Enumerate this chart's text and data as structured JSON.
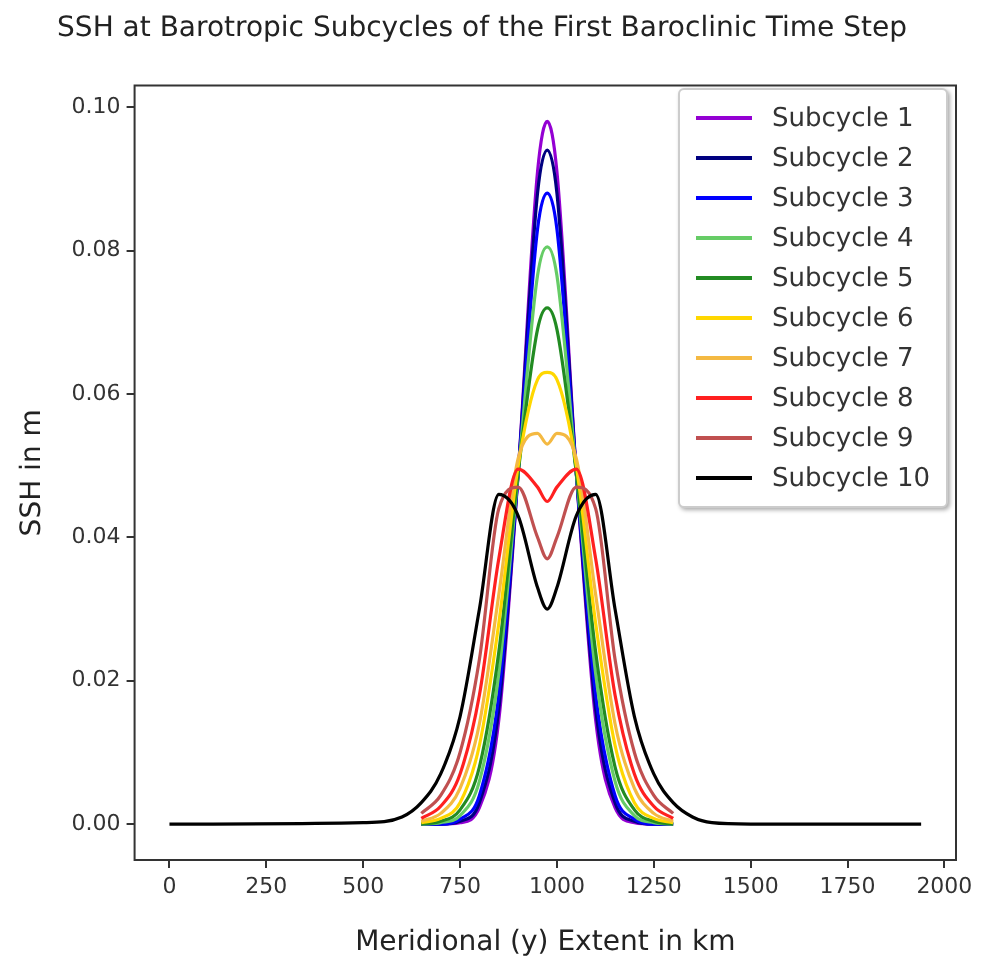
{
  "chart_data": {
    "type": "line",
    "title": "SSH at Barotropic Subcycles of the First Baroclinic Time Step",
    "xlabel": "Meridional (y) Extent in km",
    "ylabel": "SSH in m",
    "x": [
      0,
      500,
      600,
      650,
      700,
      750,
      800,
      850,
      900,
      950,
      975,
      1000,
      1050,
      1100,
      1150,
      1200,
      1250,
      1300,
      1350,
      1400,
      1500,
      1940
    ],
    "series": [
      {
        "name": "Subcycle 1",
        "color": "#9400d3",
        "values": [
          null,
          null,
          null,
          0,
          0,
          0.0002,
          0.0023,
          0.0145,
          0.049,
          0.091,
          0.098,
          0.091,
          0.049,
          0.0145,
          0.0023,
          0.0002,
          0,
          0,
          null,
          null,
          null,
          null
        ]
      },
      {
        "name": "Subcycle 2",
        "color": "#000080",
        "values": [
          null,
          null,
          null,
          0,
          0,
          0.0004,
          0.003,
          0.016,
          0.049,
          0.088,
          0.094,
          0.088,
          0.049,
          0.016,
          0.003,
          0.0004,
          0,
          0,
          null,
          null,
          null,
          null
        ]
      },
      {
        "name": "Subcycle 3",
        "color": "#0000ff",
        "values": [
          null,
          null,
          null,
          0,
          0,
          0.0007,
          0.004,
          0.018,
          0.049,
          0.083,
          0.088,
          0.083,
          0.049,
          0.018,
          0.004,
          0.0007,
          0,
          0,
          null,
          null,
          null,
          null
        ]
      },
      {
        "name": "Subcycle 4",
        "color": "#66cc66",
        "values": [
          null,
          null,
          null,
          0,
          0.0002,
          0.0012,
          0.006,
          0.021,
          0.049,
          0.0765,
          0.0805,
          0.0765,
          0.049,
          0.021,
          0.006,
          0.0012,
          0.0002,
          0,
          null,
          null,
          null,
          null
        ]
      },
      {
        "name": "Subcycle 5",
        "color": "#228b22",
        "values": [
          null,
          null,
          null,
          0,
          0.0004,
          0.002,
          0.008,
          0.024,
          0.049,
          0.069,
          0.072,
          0.069,
          0.049,
          0.024,
          0.008,
          0.002,
          0.0004,
          0,
          null,
          null,
          null,
          null
        ]
      },
      {
        "name": "Subcycle 6",
        "color": "#ffd700",
        "values": [
          null,
          null,
          null,
          0.0002,
          0.0008,
          0.003,
          0.011,
          0.028,
          0.05,
          0.062,
          0.063,
          0.062,
          0.05,
          0.028,
          0.011,
          0.003,
          0.0008,
          0.0002,
          null,
          null,
          null,
          null
        ]
      },
      {
        "name": "Subcycle 7",
        "color": "#f4b942",
        "values": [
          null,
          null,
          null,
          0.0004,
          0.0015,
          0.005,
          0.014,
          0.032,
          0.051,
          0.0545,
          0.053,
          0.0545,
          0.051,
          0.032,
          0.014,
          0.005,
          0.0015,
          0.0004,
          null,
          null,
          null,
          null
        ]
      },
      {
        "name": "Subcycle 8",
        "color": "#ff2020",
        "values": [
          null,
          null,
          null,
          0.0008,
          0.0025,
          0.007,
          0.018,
          0.037,
          0.0495,
          0.047,
          0.045,
          0.047,
          0.0495,
          0.037,
          0.018,
          0.007,
          0.0025,
          0.0008,
          null,
          null,
          null,
          null
        ]
      },
      {
        "name": "Subcycle 9",
        "color": "#c05050",
        "values": [
          null,
          null,
          null,
          0.0015,
          0.004,
          0.01,
          0.023,
          0.044,
          0.047,
          0.04,
          0.037,
          0.04,
          0.047,
          0.044,
          0.023,
          0.01,
          0.004,
          0.0015,
          null,
          null,
          null,
          null
        ]
      },
      {
        "name": "Subcycle 10",
        "color": "#000000",
        "values": [
          0,
          0.0002,
          0.001,
          0.003,
          0.007,
          0.015,
          0.03,
          0.046,
          0.043,
          0.033,
          0.03,
          0.033,
          0.043,
          0.046,
          0.03,
          0.015,
          0.007,
          0.003,
          0.001,
          0.0002,
          0,
          0
        ]
      }
    ],
    "xlim": [
      -90,
      2030
    ],
    "ylim": [
      -0.005,
      0.103
    ],
    "xticks": [
      0,
      250,
      500,
      750,
      1000,
      1250,
      1500,
      1750,
      2000
    ],
    "yticks": [
      {
        "value": 0,
        "label": "0.00"
      },
      {
        "value": 0.02,
        "label": "0.02"
      },
      {
        "value": 0.04,
        "label": "0.04"
      },
      {
        "value": 0.06,
        "label": "0.06"
      },
      {
        "value": 0.08,
        "label": "0.08"
      },
      {
        "value": 0.1,
        "label": "0.10"
      }
    ],
    "legend": "top right",
    "marker": "none",
    "line_style": "solid"
  }
}
